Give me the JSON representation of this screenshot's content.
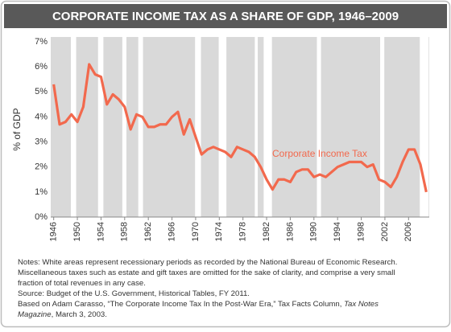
{
  "chart_data": {
    "type": "line",
    "title": "CORPORATE INCOME TAX AS A SHARE OF GDP, 1946–2009",
    "y_label": "% of GDP",
    "x": [
      1946,
      1947,
      1948,
      1949,
      1950,
      1951,
      1952,
      1953,
      1954,
      1955,
      1956,
      1957,
      1958,
      1959,
      1960,
      1961,
      1962,
      1963,
      1964,
      1965,
      1966,
      1967,
      1968,
      1969,
      1970,
      1971,
      1972,
      1973,
      1974,
      1975,
      1976,
      1977,
      1978,
      1979,
      1980,
      1981,
      1982,
      1983,
      1984,
      1985,
      1986,
      1987,
      1988,
      1989,
      1990,
      1991,
      1992,
      1993,
      1994,
      1995,
      1996,
      1997,
      1998,
      1999,
      2000,
      2001,
      2002,
      2003,
      2004,
      2005,
      2006,
      2007,
      2008,
      2009
    ],
    "series": [
      {
        "name": "Corporate Income Tax",
        "color": "#f2694d",
        "values": [
          5.3,
          3.7,
          3.8,
          4.1,
          3.8,
          4.4,
          6.1,
          5.7,
          5.6,
          4.5,
          4.9,
          4.7,
          4.4,
          3.5,
          4.1,
          4.0,
          3.6,
          3.6,
          3.7,
          3.7,
          4.0,
          4.2,
          3.3,
          3.9,
          3.2,
          2.5,
          2.7,
          2.8,
          2.7,
          2.6,
          2.4,
          2.8,
          2.7,
          2.6,
          2.4,
          2.0,
          1.5,
          1.1,
          1.5,
          1.5,
          1.4,
          1.8,
          1.9,
          1.9,
          1.6,
          1.7,
          1.6,
          1.8,
          2.0,
          2.1,
          2.2,
          2.2,
          2.2,
          2.0,
          2.1,
          1.5,
          1.4,
          1.2,
          1.6,
          2.2,
          2.7,
          2.7,
          2.1,
          1.0
        ]
      }
    ],
    "recessions": [
      [
        1948.9,
        1949.8
      ],
      [
        1953.5,
        1954.4
      ],
      [
        1957.6,
        1958.3
      ],
      [
        1960.3,
        1961.1
      ],
      [
        1969.9,
        1970.9
      ],
      [
        1973.9,
        1975.2
      ],
      [
        1980.0,
        1980.5
      ],
      [
        1981.5,
        1982.9
      ],
      [
        1990.5,
        1991.2
      ],
      [
        2001.2,
        2001.9
      ],
      [
        2007.9,
        2009.4
      ]
    ],
    "xlim": [
      1945.5,
      2009.5
    ],
    "xticks": [
      1946,
      1950,
      1954,
      1958,
      1962,
      1966,
      1970,
      1974,
      1978,
      1982,
      1986,
      1990,
      1994,
      1998,
      2002,
      2006
    ],
    "ylim": [
      0,
      7
    ],
    "yticks": [
      {
        "value": 0,
        "label": "0%"
      },
      {
        "value": 1,
        "label": "1%"
      },
      {
        "value": 2,
        "label": "2%"
      },
      {
        "value": 3,
        "label": "3%"
      },
      {
        "value": 4,
        "label": "4%"
      },
      {
        "value": 5,
        "label": "5%"
      },
      {
        "value": 6,
        "label": "6%"
      },
      {
        "value": 7,
        "label": "7%"
      }
    ],
    "grid": false,
    "plot_background": "#d9d9d9",
    "recession_color": "#ffffff",
    "notes": [
      [
        {
          "text": "Notes: White areas represent recessionary periods as recorded by the National Bureau of Economic Research."
        }
      ],
      [
        {
          "text": "Miscellaneous taxes such as estate and gift taxes are omitted for the sake of clarity, and comprise a very small"
        }
      ],
      [
        {
          "text": "fraction of total revenues in any case."
        }
      ],
      [
        {
          "text": "Source: Budget of the U.S. Government, Historical Tables, FY 2011."
        }
      ],
      [
        {
          "text": "Based on Adam Carasso, “The Corporate Income Tax In the Post-War Era,” Tax Facts Column, "
        },
        {
          "text": "Tax Notes",
          "italic": true
        }
      ],
      [
        {
          "text": "Magazine",
          "italic": true
        },
        {
          "text": ", March 3, 2003."
        }
      ]
    ]
  }
}
